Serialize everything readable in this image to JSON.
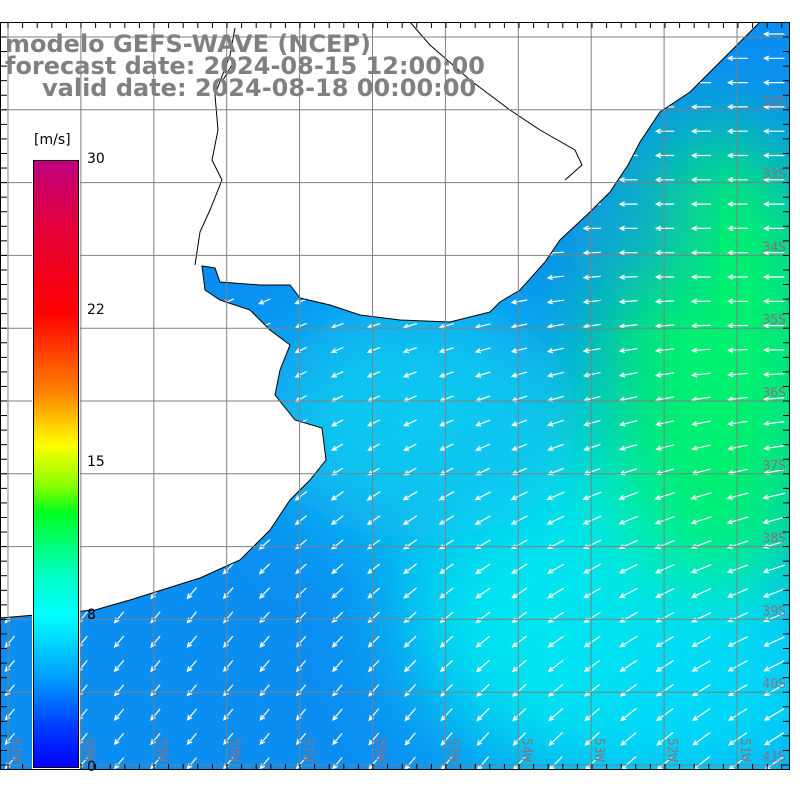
{
  "title": {
    "line1": "modelo GEFS-WAVE (NCEP)",
    "line2": "forecast date: 2024-08-15 12:00:00",
    "line3": "valid date: 2024-08-18 00:00:00"
  },
  "colorbar": {
    "unit": "[m/s]",
    "ticks": [
      "30",
      "22",
      "15",
      "8",
      "0"
    ],
    "max_color": "#c0007f",
    "min_color": "#0000ff"
  },
  "latitude_labels": [
    "32S",
    "33S",
    "34S",
    "35S",
    "36S",
    "37S",
    "38S",
    "39S",
    "40S",
    "41S"
  ],
  "longitude_labels": [
    "61W",
    "60W",
    "59W",
    "58W",
    "57W",
    "56W",
    "55W",
    "54W",
    "53W",
    "52W",
    "51W"
  ],
  "colors": {
    "grid": "#808080",
    "land": "#ffffff",
    "coast": "#000000",
    "arrows": "#ffffff"
  }
}
